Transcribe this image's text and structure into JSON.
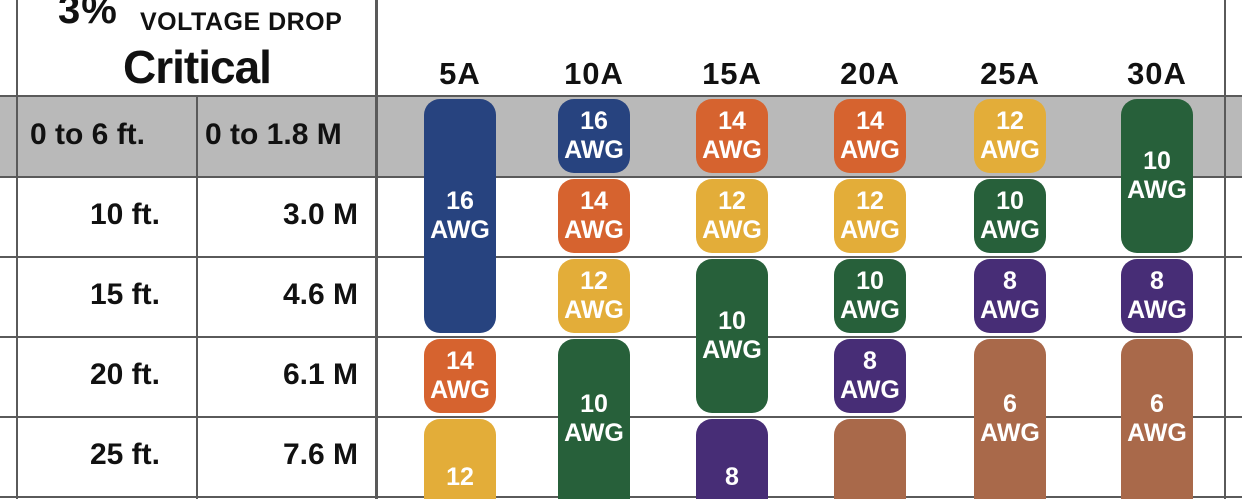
{
  "title": {
    "percent": "3%",
    "subtitle": "VOLTAGE DROP",
    "main": "Critical"
  },
  "columns": [
    "5A",
    "10A",
    "15A",
    "20A",
    "25A",
    "30A"
  ],
  "rows": [
    {
      "ft": "0 to 6 ft.",
      "m": "0 to 1.8 M"
    },
    {
      "ft": "10 ft.",
      "m": "3.0 M"
    },
    {
      "ft": "15 ft.",
      "m": "4.6 M"
    },
    {
      "ft": "20 ft.",
      "m": "6.1 M"
    },
    {
      "ft": "25 ft.",
      "m": "7.6 M"
    }
  ],
  "colors": {
    "blue": "#27437f",
    "orange": "#d6632f",
    "yellow": "#e3ad39",
    "green": "#27603a",
    "purple": "#472d76",
    "brown": "#a9694a",
    "band": "#b9b9b9"
  },
  "cells": [
    {
      "col": 0,
      "row_start": 0,
      "row_end": 2,
      "gauge": "16",
      "unit": "AWG",
      "color": "blue"
    },
    {
      "col": 0,
      "row_start": 3,
      "row_end": 3,
      "gauge": "14",
      "unit": "AWG",
      "color": "orange"
    },
    {
      "col": 0,
      "row_start": 4,
      "row_end": 4,
      "gauge": "12",
      "unit": "",
      "color": "yellow"
    },
    {
      "col": 1,
      "row_start": 0,
      "row_end": 0,
      "gauge": "16",
      "unit": "AWG",
      "color": "blue"
    },
    {
      "col": 1,
      "row_start": 1,
      "row_end": 1,
      "gauge": "14",
      "unit": "AWG",
      "color": "orange"
    },
    {
      "col": 1,
      "row_start": 2,
      "row_end": 2,
      "gauge": "12",
      "unit": "AWG",
      "color": "yellow"
    },
    {
      "col": 1,
      "row_start": 3,
      "row_end": 4,
      "gauge": "10",
      "unit": "AWG",
      "color": "green"
    },
    {
      "col": 2,
      "row_start": 0,
      "row_end": 0,
      "gauge": "14",
      "unit": "AWG",
      "color": "orange"
    },
    {
      "col": 2,
      "row_start": 1,
      "row_end": 1,
      "gauge": "12",
      "unit": "AWG",
      "color": "yellow"
    },
    {
      "col": 2,
      "row_start": 2,
      "row_end": 3,
      "gauge": "10",
      "unit": "AWG",
      "color": "green"
    },
    {
      "col": 2,
      "row_start": 4,
      "row_end": 4,
      "gauge": "8",
      "unit": "",
      "color": "purple"
    },
    {
      "col": 3,
      "row_start": 0,
      "row_end": 0,
      "gauge": "14",
      "unit": "AWG",
      "color": "orange"
    },
    {
      "col": 3,
      "row_start": 1,
      "row_end": 1,
      "gauge": "12",
      "unit": "AWG",
      "color": "yellow"
    },
    {
      "col": 3,
      "row_start": 2,
      "row_end": 2,
      "gauge": "10",
      "unit": "AWG",
      "color": "green"
    },
    {
      "col": 3,
      "row_start": 3,
      "row_end": 3,
      "gauge": "8",
      "unit": "AWG",
      "color": "purple"
    },
    {
      "col": 3,
      "row_start": 4,
      "row_end": 4,
      "gauge": "",
      "unit": "",
      "color": "brown"
    },
    {
      "col": 4,
      "row_start": 0,
      "row_end": 0,
      "gauge": "12",
      "unit": "AWG",
      "color": "yellow"
    },
    {
      "col": 4,
      "row_start": 1,
      "row_end": 1,
      "gauge": "10",
      "unit": "AWG",
      "color": "green"
    },
    {
      "col": 4,
      "row_start": 2,
      "row_end": 2,
      "gauge": "8",
      "unit": "AWG",
      "color": "purple"
    },
    {
      "col": 4,
      "row_start": 3,
      "row_end": 4,
      "gauge": "6",
      "unit": "AWG",
      "color": "brown"
    },
    {
      "col": 5,
      "row_start": 0,
      "row_end": 1,
      "gauge": "10",
      "unit": "AWG",
      "color": "green"
    },
    {
      "col": 5,
      "row_start": 2,
      "row_end": 2,
      "gauge": "8",
      "unit": "AWG",
      "color": "purple"
    },
    {
      "col": 5,
      "row_start": 3,
      "row_end": 4,
      "gauge": "6",
      "unit": "AWG",
      "color": "brown"
    }
  ]
}
